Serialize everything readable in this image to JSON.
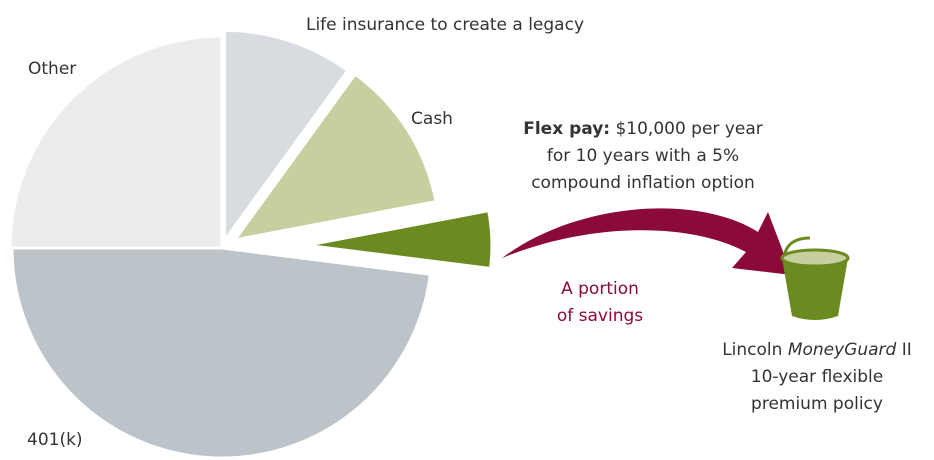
{
  "chart_data": {
    "type": "pie",
    "categories": [
      "Life insurance to create a legacy",
      "Cash",
      "A portion of savings",
      "401(k)",
      "Other"
    ],
    "values": [
      10,
      12,
      5,
      48,
      25
    ],
    "colors": [
      "#d8dbdf",
      "#c6cf9e",
      "#6b8a1f",
      "#bcc3c9",
      "#eaecee"
    ],
    "annotations": {
      "flex_pay_label": "Flex pay:",
      "flex_pay_lines": [
        " $10,000 per year",
        "for 10 years with a 5%",
        "compound inflation option"
      ],
      "portion_lines": [
        "A portion",
        "of savings"
      ],
      "policy_prefix": "Lincoln ",
      "policy_brand": "MoneyGuard",
      "policy_suffix": " II",
      "policy_lines": [
        "10-year flexible",
        "premium policy"
      ]
    }
  }
}
